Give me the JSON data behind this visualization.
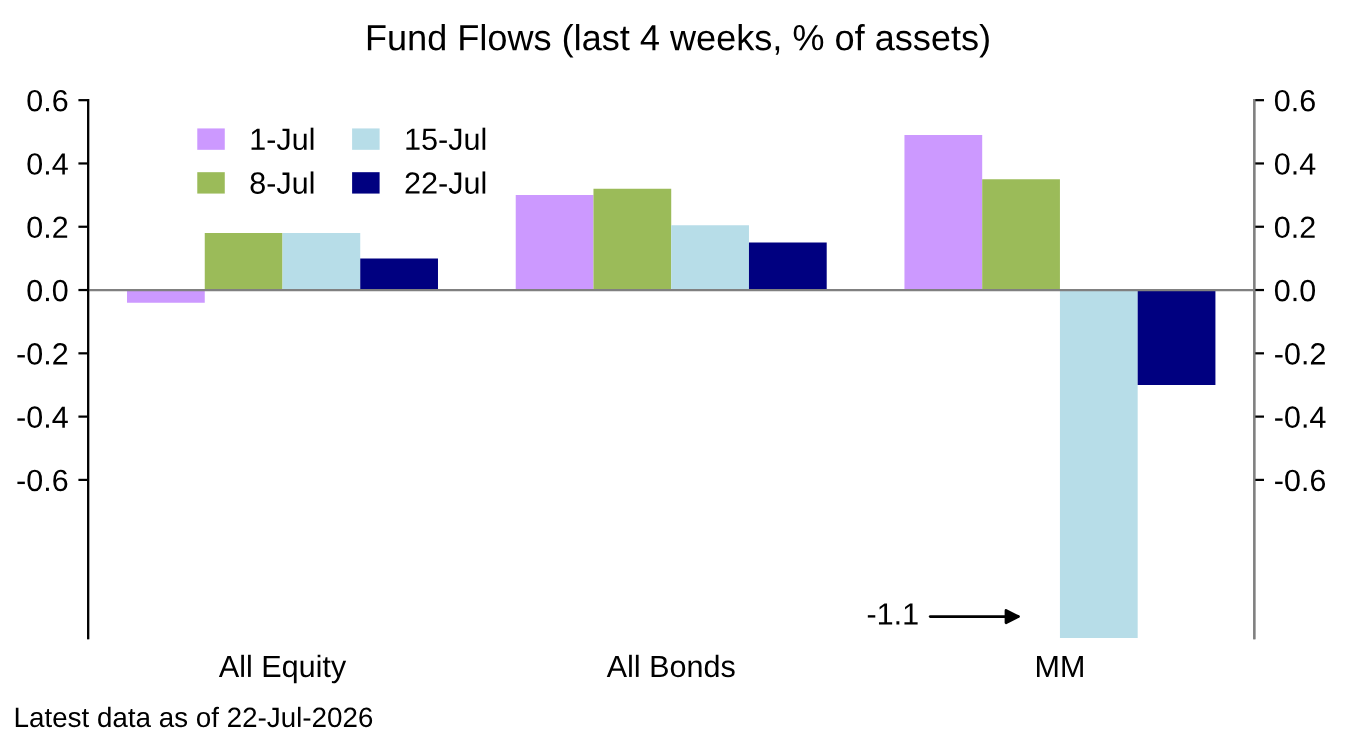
{
  "chart_data": {
    "type": "bar",
    "title": "Fund Flows (last 4 weeks, % of assets)",
    "categories": [
      "All Equity",
      "All Bonds",
      "MM"
    ],
    "series": [
      {
        "name": "1-Jul",
        "color": "#cc99ff",
        "values": [
          -0.04,
          0.3,
          0.49
        ]
      },
      {
        "name": "8-Jul",
        "color": "#9bbb59",
        "values": [
          0.18,
          0.32,
          0.35
        ]
      },
      {
        "name": "15-Jul",
        "color": "#b7dde8",
        "values": [
          0.18,
          0.205,
          -1.1
        ]
      },
      {
        "name": "22-Jul",
        "color": "#000080",
        "values": [
          0.1,
          0.15,
          -0.3
        ]
      }
    ],
    "ylim": [
      -1.1,
      0.6
    ],
    "yticks": [
      {
        "value": -0.6,
        "label": "-0.6"
      },
      {
        "value": -0.4,
        "label": "-0.4"
      },
      {
        "value": -0.2,
        "label": "-0.2"
      },
      {
        "value": 0,
        "label": "0.0"
      },
      {
        "value": 0.2,
        "label": "0.2"
      },
      {
        "value": 0.4,
        "label": "0.4"
      },
      {
        "value": 0.6,
        "label": "0.6"
      }
    ],
    "y2lim": [
      -1.1,
      0.6
    ],
    "y2ticks": [
      {
        "value": -0.6,
        "label": "-0.6"
      },
      {
        "value": -0.4,
        "label": "-0.4"
      },
      {
        "value": -0.2,
        "label": "-0.2"
      },
      {
        "value": 0,
        "label": "0.0"
      },
      {
        "value": 0.2,
        "label": "0.2"
      },
      {
        "value": 0.4,
        "label": "0.4"
      },
      {
        "value": 0.6,
        "label": "0.6"
      }
    ],
    "grid": false,
    "legend": "top left",
    "ref_lines": [
      {
        "axis": "y",
        "value": 0,
        "color": "#808080"
      }
    ],
    "annotations": [
      "-1.1",
      "Latest data as of 22-Jul-2026"
    ]
  }
}
